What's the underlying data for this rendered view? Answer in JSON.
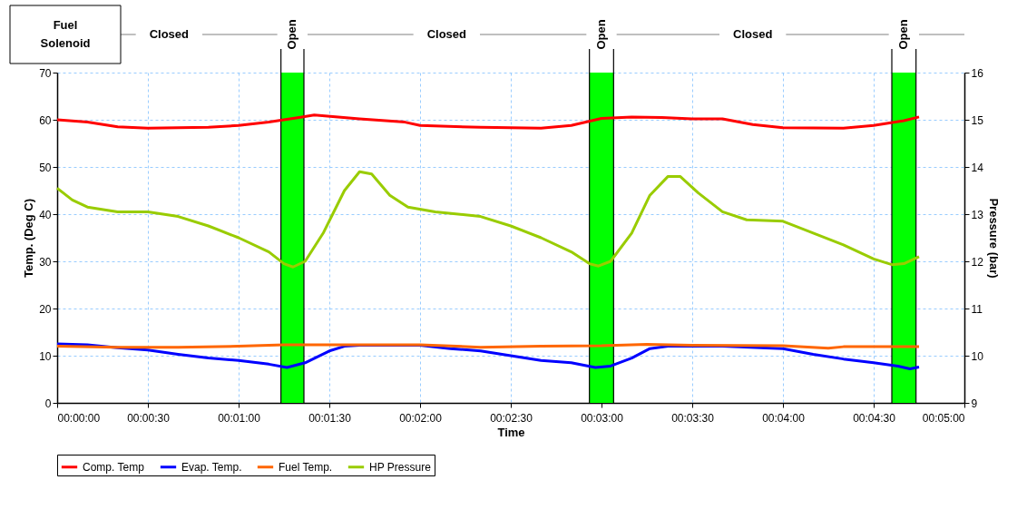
{
  "chart_data": {
    "type": "line",
    "xlabel": "Time",
    "ylabel": "Temp. (Deg C)",
    "y2label": "Pressure (bar)",
    "xlim": [
      0,
      300
    ],
    "xticks": [
      {
        "value": 0,
        "label": "00:00:00"
      },
      {
        "value": 30,
        "label": "00:00:30"
      },
      {
        "value": 60,
        "label": "00:01:00"
      },
      {
        "value": 90,
        "label": "00:01:30"
      },
      {
        "value": 120,
        "label": "00:02:00"
      },
      {
        "value": 150,
        "label": "00:02:30"
      },
      {
        "value": 180,
        "label": "00:03:00"
      },
      {
        "value": 210,
        "label": "00:03:30"
      },
      {
        "value": 240,
        "label": "00:04:00"
      },
      {
        "value": 270,
        "label": "00:04:30"
      },
      {
        "value": 300,
        "label": "00:05:00"
      }
    ],
    "ylim": [
      0,
      70
    ],
    "yticks": [
      0,
      10,
      20,
      30,
      40,
      50,
      60,
      70
    ],
    "y2lim": [
      9,
      16
    ],
    "y2ticks": [
      9,
      10,
      11,
      12,
      13,
      14,
      15,
      16
    ],
    "grid": true,
    "legend": "bottom",
    "marker": "none",
    "line_style": "solid",
    "series": [
      {
        "name": "Comp. Temp",
        "color": "#ff0000",
        "x": [
          0,
          10,
          20,
          30,
          40,
          50,
          60,
          70,
          80,
          85,
          100,
          115,
          120,
          140,
          160,
          170,
          180,
          190,
          200,
          210,
          220,
          230,
          240,
          260,
          270,
          280,
          285
        ],
        "values": [
          60,
          59.5,
          58.5,
          58.2,
          58.3,
          58.4,
          58.8,
          59.5,
          60.5,
          61,
          60.2,
          59.5,
          58.8,
          58.4,
          58.2,
          58.8,
          60.3,
          60.6,
          60.5,
          60.2,
          60.2,
          59,
          58.3,
          58.2,
          58.8,
          59.8,
          60.6
        ]
      },
      {
        "name": "Evap. Temp.",
        "color": "#0000ff",
        "x": [
          0,
          10,
          20,
          30,
          40,
          50,
          60,
          70,
          76,
          82,
          90,
          95,
          100,
          120,
          130,
          140,
          150,
          160,
          170,
          178,
          183,
          190,
          196,
          202,
          220,
          240,
          250,
          260,
          270,
          278,
          282,
          285
        ],
        "values": [
          12.5,
          12.3,
          11.7,
          11.2,
          10.3,
          9.5,
          9,
          8.2,
          7.5,
          8.5,
          11,
          12,
          12.2,
          12.2,
          11.5,
          11,
          10,
          9,
          8.5,
          7.5,
          7.8,
          9.5,
          11.5,
          12,
          12,
          11.5,
          10.3,
          9.3,
          8.5,
          7.8,
          7.2,
          7.6
        ]
      },
      {
        "name": "Fuel Temp.",
        "color": "#ff6600",
        "x": [
          0,
          20,
          40,
          60,
          75,
          100,
          120,
          140,
          160,
          180,
          195,
          210,
          240,
          255,
          260,
          285
        ],
        "values": [
          12,
          11.8,
          11.8,
          12,
          12.3,
          12.3,
          12.3,
          11.8,
          12,
          12.1,
          12.4,
          12.2,
          12.1,
          11.6,
          11.9,
          11.9
        ]
      },
      {
        "name": "HP Pressure",
        "color": "#99cc00",
        "axis": "y2",
        "x": [
          0,
          5,
          10,
          20,
          30,
          40,
          50,
          60,
          70,
          75,
          78,
          82,
          88,
          95,
          100,
          104,
          110,
          116,
          125,
          140,
          150,
          160,
          170,
          176,
          179,
          183,
          190,
          196,
          202,
          206,
          212,
          220,
          228,
          240,
          250,
          260,
          270,
          276,
          280,
          285
        ],
        "values": [
          13.55,
          13.3,
          13.15,
          13.05,
          13.05,
          12.95,
          12.75,
          12.5,
          12.2,
          11.95,
          11.88,
          12.0,
          12.6,
          13.5,
          13.9,
          13.85,
          13.4,
          13.15,
          13.05,
          12.95,
          12.75,
          12.5,
          12.2,
          11.95,
          11.9,
          12.0,
          12.6,
          13.4,
          13.8,
          13.8,
          13.45,
          13.05,
          12.88,
          12.85,
          12.6,
          12.35,
          12.05,
          11.93,
          11.95,
          12.1
        ]
      }
    ],
    "bands": [
      {
        "axis": "x",
        "from": 74,
        "to": 81.6,
        "label": "Open",
        "color": "#00ff00"
      },
      {
        "axis": "x",
        "from": 176,
        "to": 184,
        "label": "Open",
        "color": "#00ff00"
      },
      {
        "axis": "x",
        "from": 276,
        "to": 284,
        "label": "Open",
        "color": "#00ff00"
      }
    ],
    "annotations": [
      "Fuel Solenoid",
      "Closed",
      "Closed",
      "Closed"
    ]
  }
}
